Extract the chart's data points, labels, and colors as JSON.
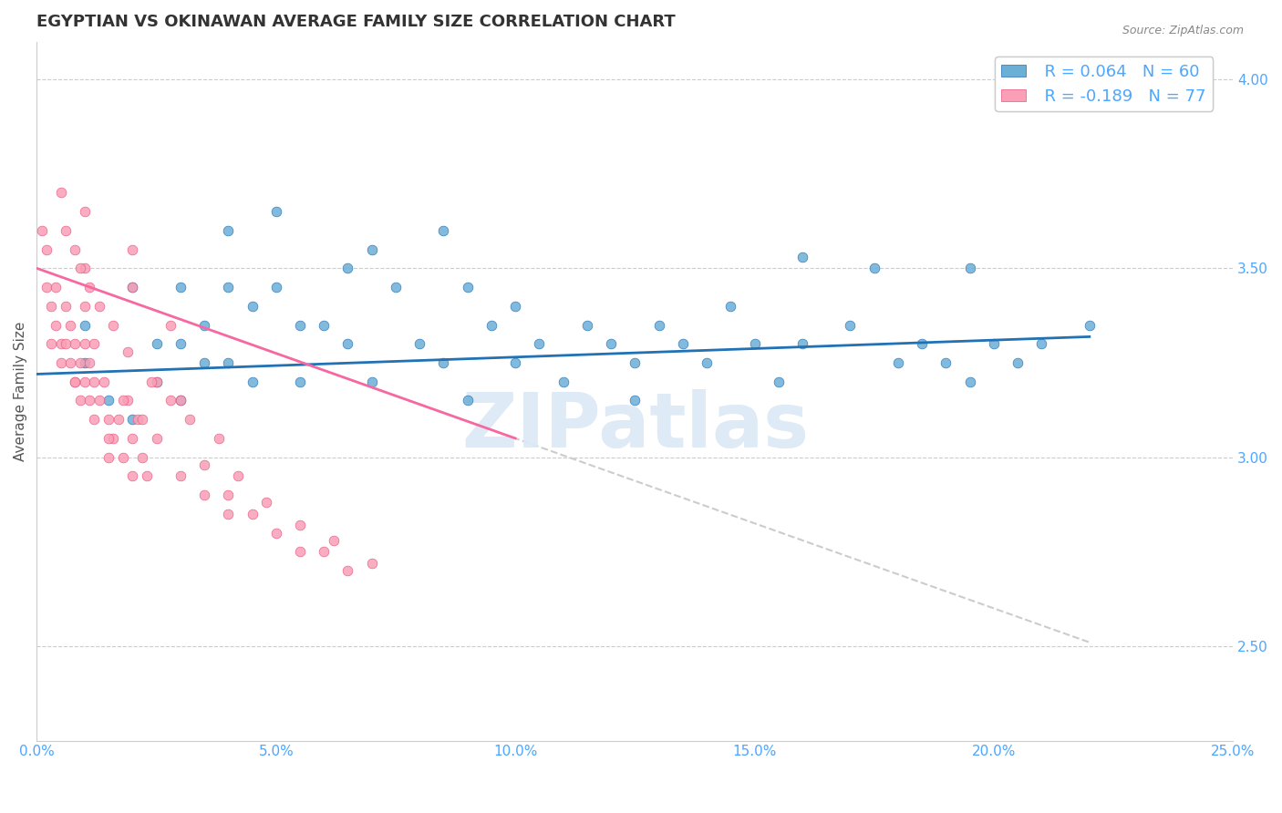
{
  "title": "EGYPTIAN VS OKINAWAN AVERAGE FAMILY SIZE CORRELATION CHART",
  "source_text": "Source: ZipAtlas.com",
  "xlabel": "",
  "ylabel": "Average Family Size",
  "xlim": [
    0.0,
    0.25
  ],
  "ylim": [
    2.25,
    4.1
  ],
  "yticks": [
    2.5,
    3.0,
    3.5,
    4.0
  ],
  "xticks": [
    0.0,
    0.05,
    0.1,
    0.15,
    0.2,
    0.25
  ],
  "xtick_labels": [
    "0.0%",
    "5.0%",
    "10.0%",
    "15.0%",
    "20.0%",
    "25.0%"
  ],
  "blue_color": "#6baed6",
  "pink_color": "#fa9fb5",
  "blue_line_color": "#2171b5",
  "pink_line_color": "#f768a1",
  "axis_color": "#4da6ff",
  "legend_R1": "R = 0.064",
  "legend_N1": "N = 60",
  "legend_R2": "R = -0.189",
  "legend_N2": "N = 77",
  "watermark": "ZIPatlas",
  "blue_scatter": {
    "x": [
      0.01,
      0.01,
      0.015,
      0.02,
      0.02,
      0.025,
      0.025,
      0.03,
      0.03,
      0.03,
      0.035,
      0.035,
      0.04,
      0.04,
      0.04,
      0.045,
      0.045,
      0.05,
      0.05,
      0.055,
      0.055,
      0.06,
      0.065,
      0.065,
      0.07,
      0.07,
      0.075,
      0.08,
      0.085,
      0.085,
      0.09,
      0.09,
      0.095,
      0.1,
      0.1,
      0.105,
      0.11,
      0.115,
      0.12,
      0.125,
      0.125,
      0.13,
      0.135,
      0.14,
      0.145,
      0.15,
      0.155,
      0.16,
      0.17,
      0.18,
      0.185,
      0.19,
      0.195,
      0.2,
      0.205,
      0.195,
      0.16,
      0.175,
      0.21,
      0.22
    ],
    "y": [
      3.35,
      3.25,
      3.15,
      3.45,
      3.1,
      3.3,
      3.2,
      3.45,
      3.3,
      3.15,
      3.35,
      3.25,
      3.6,
      3.45,
      3.25,
      3.4,
      3.2,
      3.65,
      3.45,
      3.35,
      3.2,
      3.35,
      3.5,
      3.3,
      3.55,
      3.2,
      3.45,
      3.3,
      3.6,
      3.25,
      3.45,
      3.15,
      3.35,
      3.4,
      3.25,
      3.3,
      3.2,
      3.35,
      3.3,
      3.25,
      3.15,
      3.35,
      3.3,
      3.25,
      3.4,
      3.3,
      3.2,
      3.3,
      3.35,
      3.25,
      3.3,
      3.25,
      3.2,
      3.3,
      3.25,
      3.5,
      3.53,
      3.5,
      3.3,
      3.35
    ]
  },
  "pink_scatter": {
    "x": [
      0.001,
      0.002,
      0.002,
      0.003,
      0.003,
      0.004,
      0.004,
      0.005,
      0.005,
      0.006,
      0.006,
      0.007,
      0.007,
      0.008,
      0.008,
      0.009,
      0.009,
      0.01,
      0.01,
      0.011,
      0.011,
      0.012,
      0.012,
      0.013,
      0.014,
      0.015,
      0.015,
      0.016,
      0.017,
      0.018,
      0.019,
      0.02,
      0.02,
      0.021,
      0.022,
      0.023,
      0.025,
      0.03,
      0.035,
      0.04,
      0.045,
      0.05,
      0.055,
      0.06,
      0.065,
      0.02,
      0.02,
      0.025,
      0.028,
      0.03,
      0.01,
      0.01,
      0.01,
      0.008,
      0.012,
      0.015,
      0.018,
      0.022,
      0.035,
      0.04,
      0.005,
      0.006,
      0.008,
      0.009,
      0.011,
      0.013,
      0.016,
      0.019,
      0.024,
      0.028,
      0.032,
      0.038,
      0.042,
      0.048,
      0.055,
      0.062,
      0.07
    ],
    "y": [
      3.6,
      3.55,
      3.45,
      3.4,
      3.3,
      3.45,
      3.35,
      3.3,
      3.25,
      3.4,
      3.3,
      3.35,
      3.25,
      3.3,
      3.2,
      3.25,
      3.15,
      3.3,
      3.2,
      3.25,
      3.15,
      3.2,
      3.1,
      3.15,
      3.2,
      3.1,
      3.0,
      3.05,
      3.1,
      3.0,
      3.15,
      3.05,
      2.95,
      3.1,
      3.0,
      2.95,
      3.05,
      2.95,
      2.9,
      2.85,
      2.85,
      2.8,
      2.75,
      2.75,
      2.7,
      3.45,
      3.55,
      3.2,
      3.35,
      3.15,
      3.65,
      3.5,
      3.4,
      3.2,
      3.3,
      3.05,
      3.15,
      3.1,
      2.98,
      2.9,
      3.7,
      3.6,
      3.55,
      3.5,
      3.45,
      3.4,
      3.35,
      3.28,
      3.2,
      3.15,
      3.1,
      3.05,
      2.95,
      2.88,
      2.82,
      2.78,
      2.72
    ]
  },
  "blue_line_x": [
    0.0,
    0.22
  ],
  "blue_line_y_intercept": 3.22,
  "blue_line_slope": 0.45,
  "pink_line_x": [
    0.0,
    0.1
  ],
  "pink_line_y_intercept": 3.5,
  "pink_line_slope": -4.5,
  "gray_line_x": [
    0.04,
    0.22
  ],
  "gray_line_y_intercept": 3.5,
  "gray_line_slope": -4.5
}
